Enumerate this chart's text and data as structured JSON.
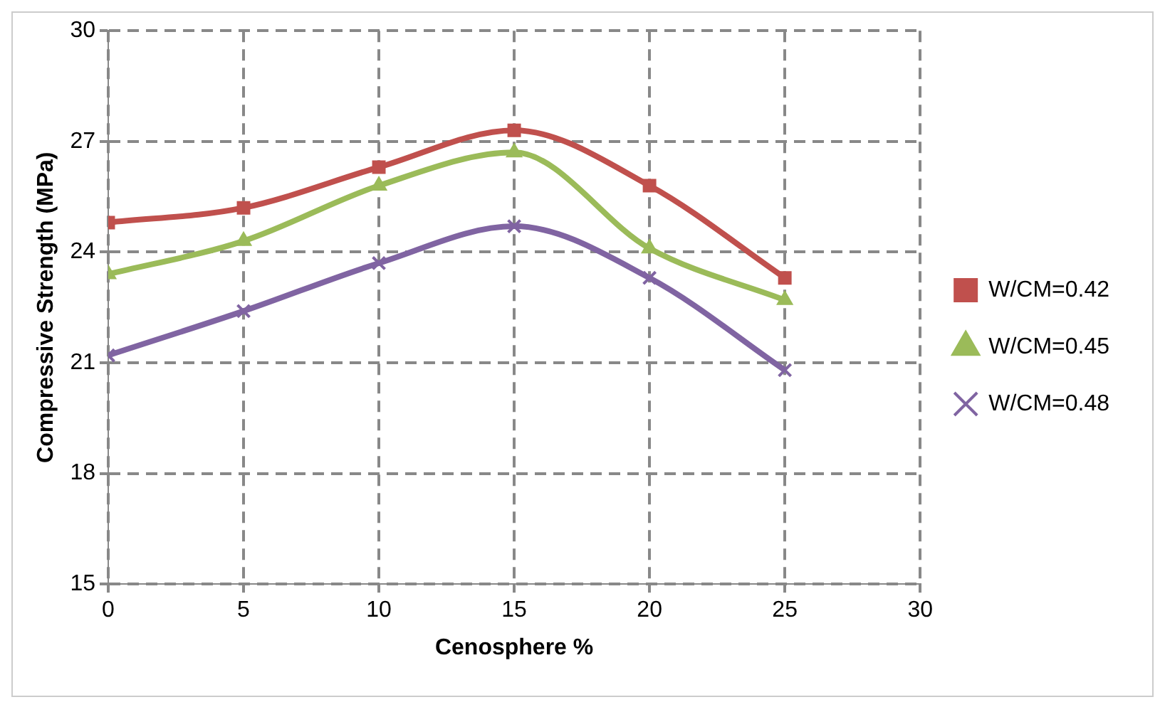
{
  "chart_data": {
    "type": "line",
    "xlabel": "Cenosphere %",
    "ylabel": "Compressive Strength (MPa)",
    "x": [
      0,
      5,
      10,
      15,
      20,
      25
    ],
    "xlim": [
      0,
      30
    ],
    "xticks": [
      0,
      5,
      10,
      15,
      20,
      25,
      30
    ],
    "ylim": [
      15,
      30
    ],
    "yticks": [
      15,
      18,
      21,
      24,
      27,
      30
    ],
    "grid": true,
    "legend": "right",
    "line_style": "solid",
    "series": [
      {
        "name": "W/CM=0.42",
        "color": "#c0504d",
        "marker": "square",
        "values": [
          24.8,
          25.2,
          26.3,
          27.3,
          25.8,
          23.3
        ]
      },
      {
        "name": "W/CM=0.45",
        "color": "#9bbb59",
        "marker": "triangle",
        "values": [
          23.4,
          24.3,
          25.8,
          26.7,
          24.1,
          22.7
        ]
      },
      {
        "name": "W/CM=0.48",
        "color": "#8064a2",
        "marker": "cross",
        "values": [
          21.2,
          22.4,
          23.7,
          24.7,
          23.3,
          20.8
        ]
      }
    ]
  }
}
